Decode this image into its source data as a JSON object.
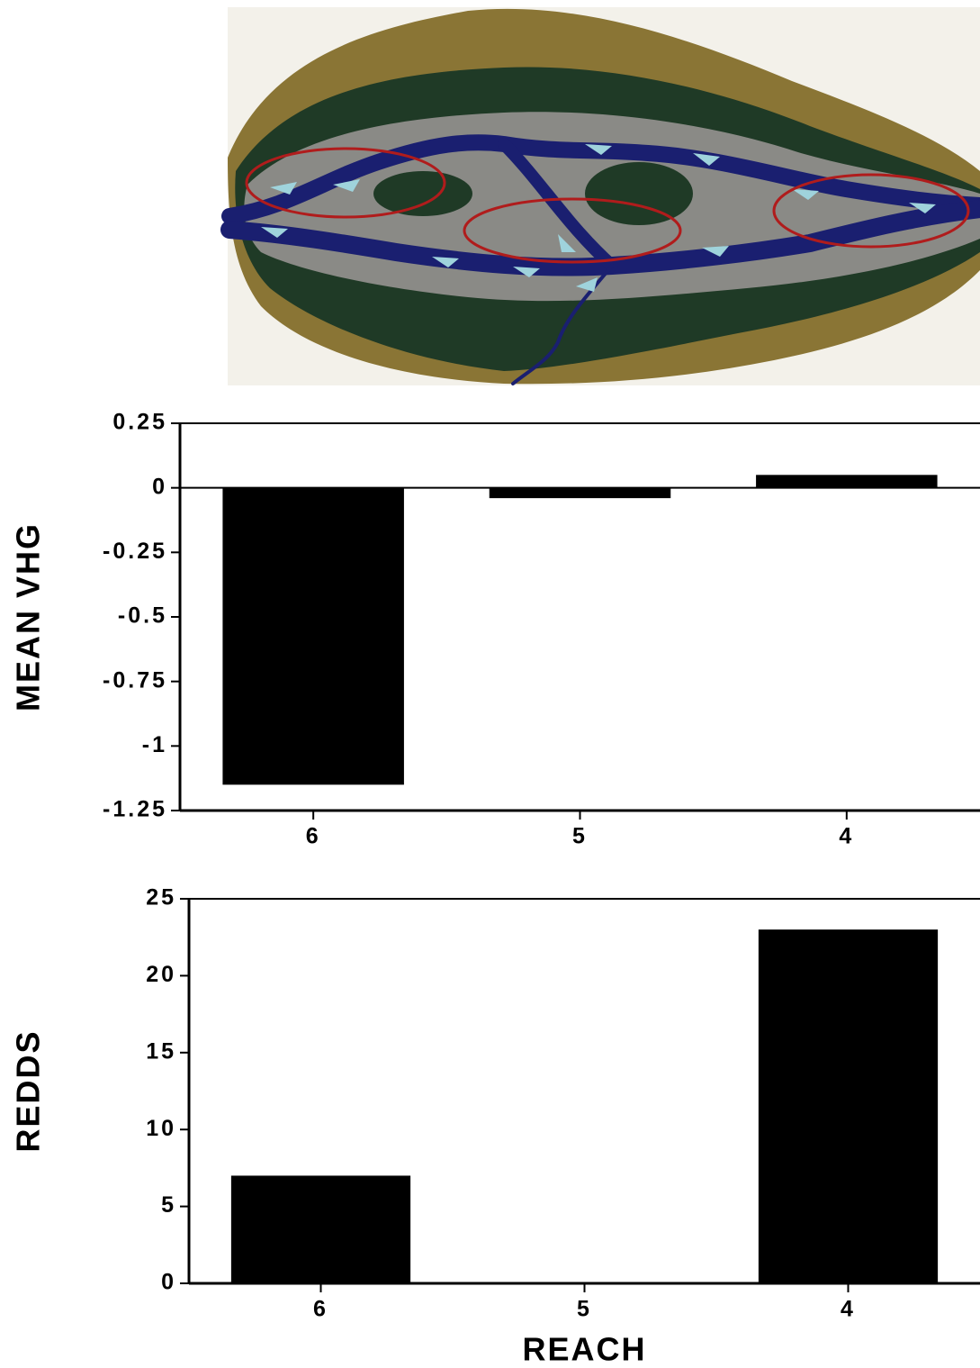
{
  "chart_data": [
    {
      "type": "bar",
      "ylabel": "MEAN VHG",
      "categories": [
        "6",
        "5",
        "4"
      ],
      "values": [
        -1.15,
        -0.04,
        0.05
      ],
      "color": "#000000",
      "ylim": [
        -1.25,
        0.25
      ],
      "yticks": [
        0.25,
        0,
        -0.25,
        -0.5,
        -0.75,
        -1,
        -1.25
      ]
    },
    {
      "type": "bar",
      "ylabel": "REDDS",
      "xlabel": "REACH",
      "categories": [
        "6",
        "5",
        "4"
      ],
      "values": [
        7,
        0,
        23
      ],
      "color": "#000000",
      "ylim": [
        0,
        25
      ],
      "yticks": [
        0,
        5,
        10,
        15,
        20,
        25
      ]
    }
  ]
}
